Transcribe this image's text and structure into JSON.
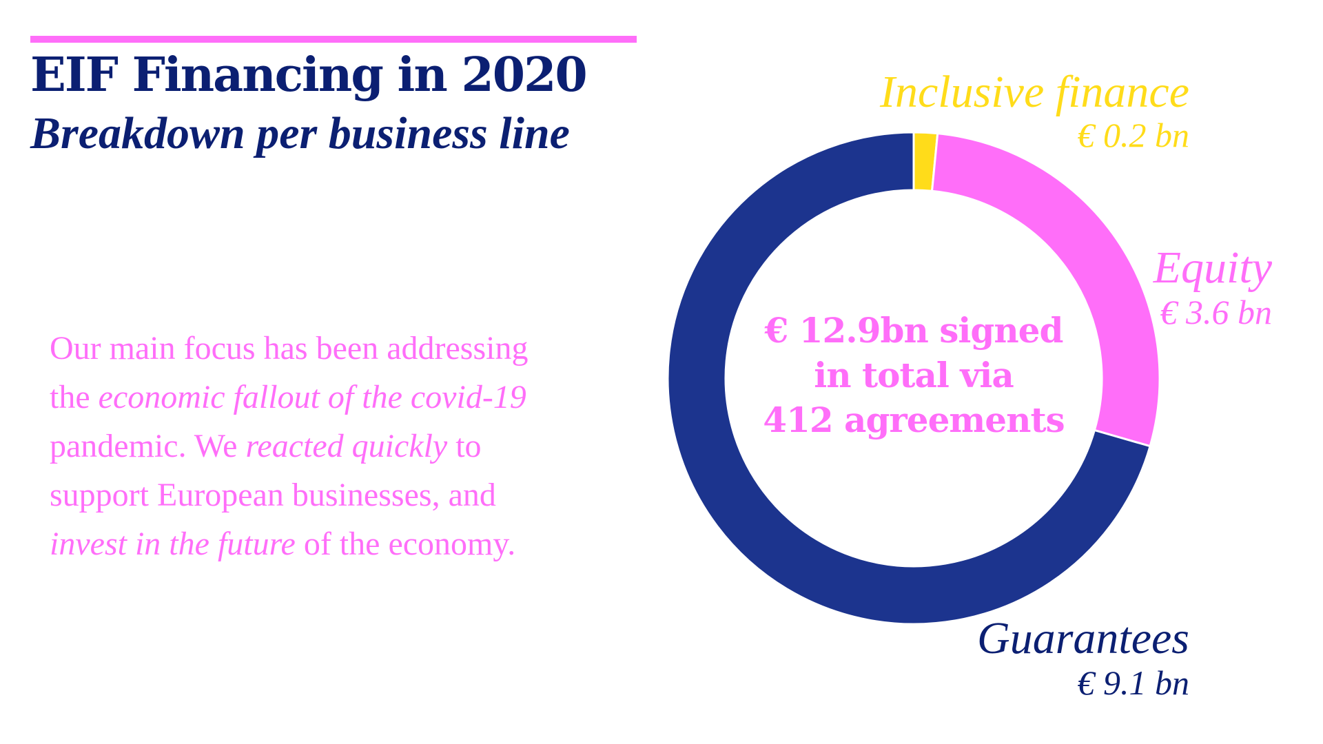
{
  "header": {
    "title": "EIF Financing in 2020",
    "subtitle": "Breakdown per business line"
  },
  "body": {
    "line1": "Our main focus has been addressing",
    "line2_a": "the ",
    "line2_em": "economic fallout of the covid-19",
    "line3_a": "pandemic. We ",
    "line3_em": "reacted quickly",
    "line3_b": " to",
    "line4": "support European businesses, and",
    "line5_em": "invest in the future",
    "line5_b": " of the economy."
  },
  "chart_data": {
    "type": "pie",
    "subtype": "donut",
    "center_text": [
      "€ 12.9bn signed",
      "in total  via",
      "412 agreements"
    ],
    "unit": "€ bn",
    "series": [
      {
        "name": "Inclusive finance",
        "value": 0.2,
        "display": "€ 0.2 bn",
        "color": "#ffdc1a",
        "text_color": "#ffdc1a"
      },
      {
        "name": "Equity",
        "value": 3.6,
        "display": "€ 3.6 bn",
        "color": "#ff6ef9",
        "text_color": "#ff6ef9"
      },
      {
        "name": "Guarantees",
        "value": 9.1,
        "display": "€ 9.1 bn",
        "color": "#1c348e",
        "text_color": "#0b1f72"
      }
    ]
  }
}
